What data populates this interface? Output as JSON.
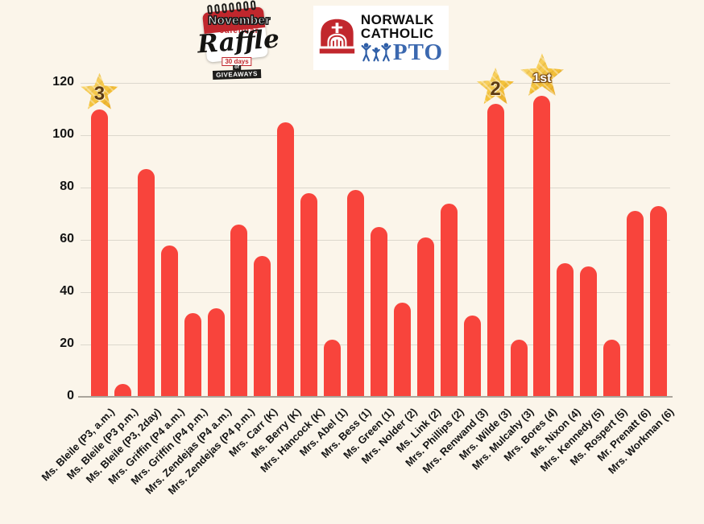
{
  "header": {
    "calendar_logo": {
      "november": "November",
      "calendar": "calendar",
      "raffle": "Raffle",
      "days": "30 days",
      "of": "of",
      "giveaways": "GIVEAWAYS"
    },
    "pto_logo": {
      "line1": "NORWALK",
      "line2": "CATHOLIC",
      "pto": "PTO"
    }
  },
  "chart_data": {
    "type": "bar",
    "title": "",
    "xlabel": "",
    "ylabel": "",
    "categories": [
      "Ms. Bleile (P3, a.m.)",
      "Ms. Bleile (P3 p.m.)",
      "Ms. Bleile (P3, 2day)",
      "Mrs. Griffin (P4 a.m.)",
      "Mrs. Griffin (P4 p.m.)",
      "Mrs. Zendejas (P4 a.m.)",
      "Mrs. Zendejas (P4 p.m.)",
      "Mrs. Carr (K)",
      "Ms. Berry (K)",
      "Mrs. Hancock (K)",
      "Mrs. Abel (1)",
      "Mrs. Bess (1)",
      "Ms. Green (1)",
      "Mrs. Nolder (2)",
      "Ms. Link (2)",
      "Mrs. Phillips (2)",
      "Mrs. Renwand (3)",
      "Mrs. Wilde (3)",
      "Mrs. Mulcahy (3)",
      "Mrs. Bores (4)",
      "Ms. Nixon (4)",
      "Mrs. Kennedy (5)",
      "Ms. Rospert (5)",
      "Mr. Prenatt (6)",
      "Mrs. Workman (6)"
    ],
    "values": [
      110,
      5,
      87,
      58,
      32,
      34,
      66,
      54,
      105,
      78,
      22,
      79,
      65,
      36,
      61,
      74,
      31,
      112,
      22,
      115,
      51,
      50,
      22,
      71,
      73
    ],
    "badges": [
      {
        "index": 0,
        "label": "3"
      },
      {
        "index": 17,
        "label": "2"
      },
      {
        "index": 19,
        "label": "1st"
      }
    ],
    "ylim": [
      0,
      120
    ],
    "yticks": [
      0,
      20,
      40,
      60,
      80,
      100,
      120
    ],
    "grid": true,
    "legend": false,
    "colors": {
      "bar": "#f8443c",
      "background": "#fbf5ea",
      "gridline": "#dcd7cd",
      "axis_baseline": "#aaa59c",
      "tick_text": "#141414",
      "star_gold": "#f5c33b",
      "logo_red": "#c0272d",
      "pto_blue": "#3b68af"
    }
  }
}
